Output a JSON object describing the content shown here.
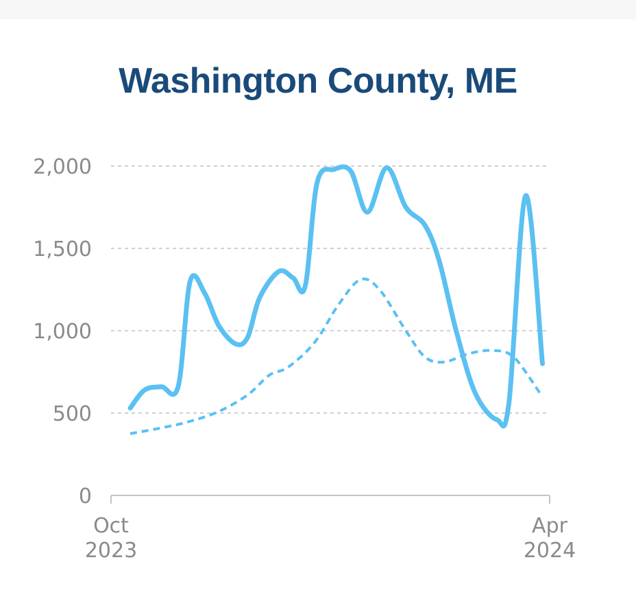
{
  "chart_data": {
    "type": "line",
    "title": "Washington County, ME",
    "xlabel": "",
    "ylabel": "",
    "ylim": [
      0,
      2000
    ],
    "yticks": [
      0,
      500,
      1000,
      1500,
      2000
    ],
    "ytick_labels": [
      "0",
      "500",
      "1,000",
      "1,500",
      "2,000"
    ],
    "xlim": [
      "2023-10-01",
      "2024-04-01"
    ],
    "xtick_labels": [
      {
        "date": "2023-10-01",
        "line1": "Oct",
        "line2": "2023"
      },
      {
        "date": "2024-04-01",
        "line1": "Apr",
        "line2": "2024"
      }
    ],
    "grid": true,
    "series": [
      {
        "style": "solid",
        "points": [
          [
            "2023-10-09",
            530
          ],
          [
            "2023-10-15",
            640
          ],
          [
            "2023-10-22",
            660
          ],
          [
            "2023-10-29",
            660
          ],
          [
            "2023-11-03",
            1300
          ],
          [
            "2023-11-09",
            1230
          ],
          [
            "2023-11-15",
            1030
          ],
          [
            "2023-11-22",
            920
          ],
          [
            "2023-11-27",
            960
          ],
          [
            "2023-12-02",
            1200
          ],
          [
            "2023-12-10",
            1360
          ],
          [
            "2023-12-16",
            1320
          ],
          [
            "2023-12-21",
            1270
          ],
          [
            "2023-12-26",
            1900
          ],
          [
            "2024-01-02",
            1980
          ],
          [
            "2024-01-09",
            1970
          ],
          [
            "2024-01-16",
            1720
          ],
          [
            "2024-01-24",
            1990
          ],
          [
            "2024-02-01",
            1750
          ],
          [
            "2024-02-09",
            1640
          ],
          [
            "2024-02-15",
            1420
          ],
          [
            "2024-02-22",
            1000
          ],
          [
            "2024-03-01",
            620
          ],
          [
            "2024-03-10",
            460
          ],
          [
            "2024-03-15",
            560
          ],
          [
            "2024-03-22",
            1820
          ],
          [
            "2024-03-29",
            800
          ]
        ]
      },
      {
        "style": "dashed",
        "points": [
          [
            "2023-10-09",
            375
          ],
          [
            "2023-10-22",
            410
          ],
          [
            "2023-11-03",
            450
          ],
          [
            "2023-11-15",
            510
          ],
          [
            "2023-11-27",
            610
          ],
          [
            "2023-12-06",
            730
          ],
          [
            "2023-12-14",
            780
          ],
          [
            "2023-12-25",
            930
          ],
          [
            "2024-01-04",
            1160
          ],
          [
            "2024-01-13",
            1310
          ],
          [
            "2024-01-21",
            1250
          ],
          [
            "2024-02-01",
            1000
          ],
          [
            "2024-02-09",
            840
          ],
          [
            "2024-02-17",
            810
          ],
          [
            "2024-02-27",
            860
          ],
          [
            "2024-03-08",
            880
          ],
          [
            "2024-03-17",
            840
          ],
          [
            "2024-03-28",
            620
          ]
        ]
      }
    ],
    "colors": {
      "title": "#1a4a7a",
      "line": "#5bc0f2",
      "grid": "#d0d0d0",
      "axis": "#c4c4c4",
      "tick_text": "#8a8a8a"
    }
  }
}
